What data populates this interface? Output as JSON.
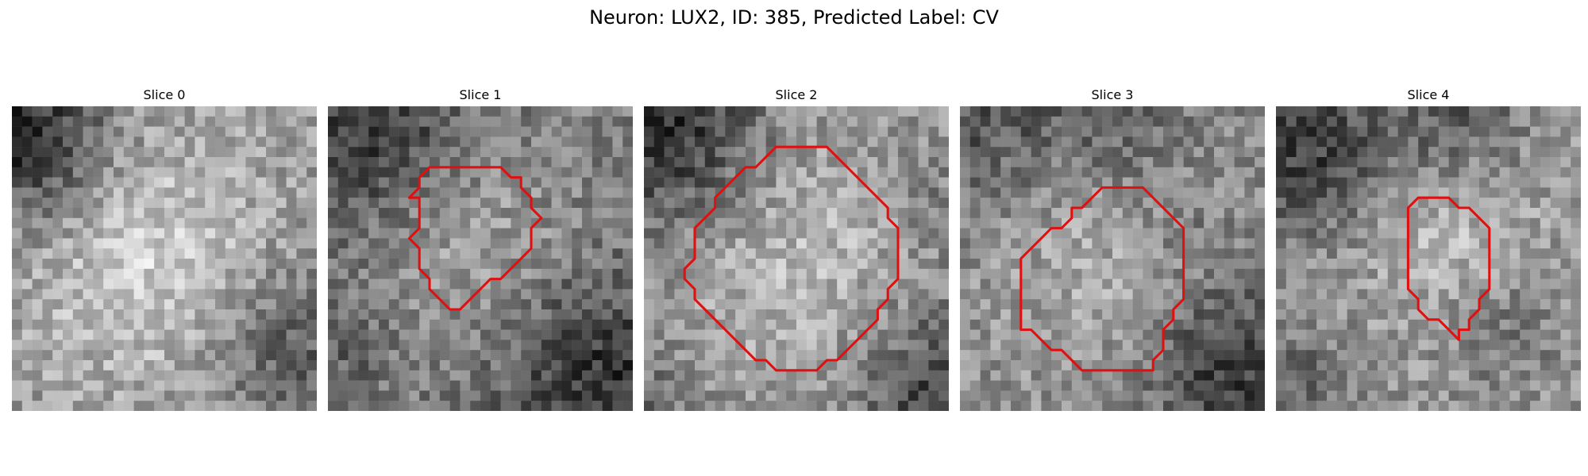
{
  "figure": {
    "title": "Neuron: LUX2, ID: 385, Predicted Label: CV"
  },
  "panels": [
    {
      "title": "Slice 0",
      "contour": []
    },
    {
      "title": "Slice 1",
      "contour": [
        [
          13,
          6
        ],
        [
          17,
          6
        ],
        [
          18,
          7
        ],
        [
          19,
          7
        ],
        [
          19,
          8
        ],
        [
          20,
          9
        ],
        [
          20,
          10
        ],
        [
          21,
          11
        ],
        [
          20,
          12
        ],
        [
          20,
          14
        ],
        [
          19,
          15
        ],
        [
          18,
          16
        ],
        [
          17,
          17
        ],
        [
          16,
          17
        ],
        [
          15,
          18
        ],
        [
          14,
          19
        ],
        [
          13,
          20
        ],
        [
          12,
          20
        ],
        [
          11,
          19
        ],
        [
          10,
          18
        ],
        [
          10,
          17
        ],
        [
          9,
          16
        ],
        [
          9,
          14
        ],
        [
          8,
          13
        ],
        [
          9,
          12
        ],
        [
          9,
          11
        ],
        [
          9,
          9
        ],
        [
          8,
          9
        ],
        [
          9,
          8
        ],
        [
          9,
          7
        ],
        [
          10,
          6
        ],
        [
          11,
          6
        ]
      ]
    },
    {
      "title": "Slice 2",
      "contour": [
        [
          13,
          4
        ],
        [
          18,
          4
        ],
        [
          19,
          5
        ],
        [
          20,
          6
        ],
        [
          21,
          7
        ],
        [
          22,
          8
        ],
        [
          23,
          9
        ],
        [
          24,
          10
        ],
        [
          24,
          11
        ],
        [
          25,
          12
        ],
        [
          25,
          15
        ],
        [
          25,
          17
        ],
        [
          24,
          18
        ],
        [
          24,
          19
        ],
        [
          23,
          20
        ],
        [
          23,
          21
        ],
        [
          22,
          22
        ],
        [
          21,
          23
        ],
        [
          20,
          24
        ],
        [
          19,
          25
        ],
        [
          18,
          25
        ],
        [
          17,
          26
        ],
        [
          14,
          26
        ],
        [
          13,
          26
        ],
        [
          12,
          25
        ],
        [
          11,
          25
        ],
        [
          10,
          24
        ],
        [
          9,
          23
        ],
        [
          8,
          22
        ],
        [
          7,
          21
        ],
        [
          6,
          20
        ],
        [
          5,
          19
        ],
        [
          5,
          18
        ],
        [
          4,
          17
        ],
        [
          4,
          16
        ],
        [
          5,
          15
        ],
        [
          5,
          13
        ],
        [
          5,
          12
        ],
        [
          6,
          11
        ],
        [
          7,
          10
        ],
        [
          7,
          9
        ],
        [
          8,
          8
        ],
        [
          9,
          7
        ],
        [
          10,
          6
        ],
        [
          11,
          6
        ],
        [
          12,
          5
        ]
      ]
    },
    {
      "title": "Slice 3",
      "contour": [
        [
          15,
          8
        ],
        [
          18,
          8
        ],
        [
          19,
          9
        ],
        [
          20,
          10
        ],
        [
          21,
          11
        ],
        [
          22,
          12
        ],
        [
          22,
          19
        ],
        [
          21,
          20
        ],
        [
          21,
          21
        ],
        [
          20,
          22
        ],
        [
          20,
          24
        ],
        [
          19,
          25
        ],
        [
          19,
          26
        ],
        [
          17,
          26
        ],
        [
          12,
          26
        ],
        [
          11,
          25
        ],
        [
          10,
          24
        ],
        [
          9,
          24
        ],
        [
          8,
          23
        ],
        [
          7,
          22
        ],
        [
          6,
          22
        ],
        [
          6,
          15
        ],
        [
          7,
          14
        ],
        [
          8,
          13
        ],
        [
          9,
          12
        ],
        [
          10,
          12
        ],
        [
          11,
          11
        ],
        [
          11,
          10
        ],
        [
          12,
          10
        ],
        [
          13,
          9
        ],
        [
          14,
          8
        ]
      ]
    },
    {
      "title": "Slice 4",
      "contour": [
        [
          14,
          9
        ],
        [
          17,
          9
        ],
        [
          18,
          10
        ],
        [
          19,
          10
        ],
        [
          20,
          11
        ],
        [
          21,
          12
        ],
        [
          21,
          18
        ],
        [
          20,
          19
        ],
        [
          20,
          20
        ],
        [
          19,
          21
        ],
        [
          19,
          22
        ],
        [
          18,
          22
        ],
        [
          18,
          23
        ],
        [
          17,
          22
        ],
        [
          16,
          21
        ],
        [
          15,
          21
        ],
        [
          14,
          20
        ],
        [
          14,
          19
        ],
        [
          13,
          18
        ],
        [
          13,
          16
        ],
        [
          13,
          10
        ]
      ]
    }
  ],
  "colors": {
    "contour": "#e01010"
  }
}
